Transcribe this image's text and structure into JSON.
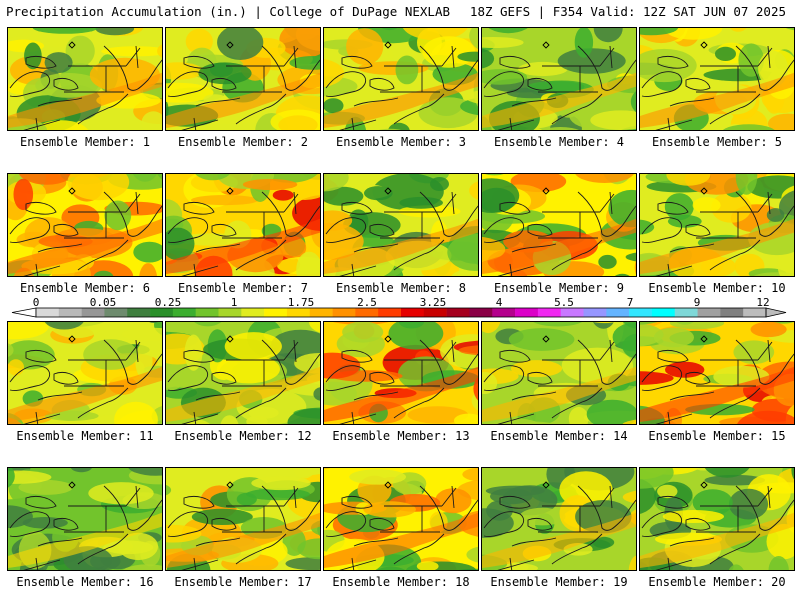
{
  "header": {
    "title": "Precipitation Accumulation (in.) | College of DuPage NEXLAB",
    "run_info": "18Z GEFS | F354 Valid: 12Z SAT JUN 07 2025"
  },
  "panels": [
    {
      "label": "Ensemble Member: 1",
      "intensity": 0.34
    },
    {
      "label": "Ensemble Member: 2",
      "intensity": 0.38
    },
    {
      "label": "Ensemble Member: 3",
      "intensity": 0.34
    },
    {
      "label": "Ensemble Member: 4",
      "intensity": 0.2
    },
    {
      "label": "Ensemble Member: 5",
      "intensity": 0.36
    },
    {
      "label": "Ensemble Member: 6",
      "intensity": 0.55
    },
    {
      "label": "Ensemble Member: 7",
      "intensity": 0.66
    },
    {
      "label": "Ensemble Member: 8",
      "intensity": 0.32
    },
    {
      "label": "Ensemble Member: 9",
      "intensity": 0.54
    },
    {
      "label": "Ensemble Member: 10",
      "intensity": 0.4
    },
    {
      "label": "Ensemble Member: 11",
      "intensity": 0.38
    },
    {
      "label": "Ensemble Member: 12",
      "intensity": 0.24
    },
    {
      "label": "Ensemble Member: 13",
      "intensity": 0.6
    },
    {
      "label": "Ensemble Member: 14",
      "intensity": 0.27
    },
    {
      "label": "Ensemble Member: 15",
      "intensity": 0.62
    },
    {
      "label": "Ensemble Member: 16",
      "intensity": 0.18
    },
    {
      "label": "Ensemble Member: 17",
      "intensity": 0.42
    },
    {
      "label": "Ensemble Member: 18",
      "intensity": 0.45
    },
    {
      "label": "Ensemble Member: 19",
      "intensity": 0.3
    },
    {
      "label": "Ensemble Member: 20",
      "intensity": 0.24
    }
  ],
  "colorbar": {
    "tick_labels": [
      "0",
      "0.05",
      "0.25",
      "1",
      "1.75",
      "2.5",
      "3.25",
      "4",
      "5.5",
      "7",
      "9",
      "12"
    ],
    "colors": [
      "#d9d9d9",
      "#b8b8b8",
      "#969696",
      "#6e8b6e",
      "#3f7f3f",
      "#2a8f2a",
      "#3cae2f",
      "#72c42c",
      "#a8d62a",
      "#e0ec20",
      "#fff200",
      "#ffd700",
      "#ffb400",
      "#ff9100",
      "#ff6a00",
      "#ff3c00",
      "#e60000",
      "#c80000",
      "#a5001e",
      "#8a0046",
      "#b4008c",
      "#dc00c8",
      "#f028f0",
      "#c878ff",
      "#9696ff",
      "#64b4ff",
      "#32e6ff",
      "#00ffff",
      "#7ed8d8",
      "#a0a0a0",
      "#808080",
      "#bcbcbc"
    ]
  }
}
